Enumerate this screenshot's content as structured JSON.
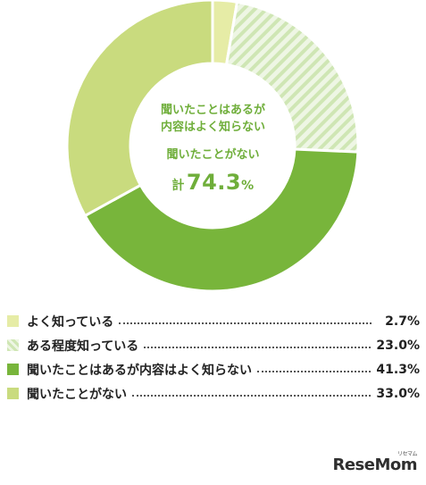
{
  "chart_data": {
    "type": "pie",
    "style": "donut",
    "categories": [
      "よく知っている",
      "ある程度知っている",
      "聞いたことはあるが内容はよく知らない",
      "聞いたことがない"
    ],
    "values": [
      2.7,
      23.0,
      41.3,
      33.0
    ],
    "value_labels": [
      "2.7%",
      "23.0%",
      "41.3%",
      "33.0%"
    ],
    "colors": [
      "#e6eca6",
      "#d8ecc2",
      "#78b53b",
      "#c9db7e"
    ],
    "hatched": [
      false,
      true,
      false,
      false
    ],
    "center": {
      "line1": "聞いたことはあるが",
      "line2": "内容はよく知らない",
      "line3": "聞いたことがない",
      "total_prefix": "計",
      "total_value": "74.3",
      "total_unit": "%"
    },
    "legend_position": "bottom"
  },
  "logo": {
    "text": "ReseMom",
    "small": "リセマム"
  }
}
